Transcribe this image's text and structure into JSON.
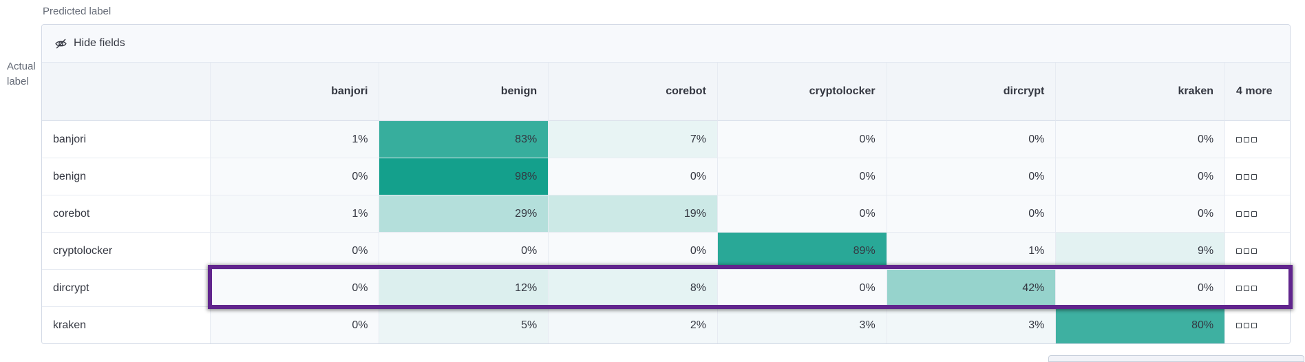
{
  "axis": {
    "predicted_label": "Predicted label",
    "actual_label_lines": [
      "Actual",
      "label"
    ]
  },
  "toolbar": {
    "hide_fields_label": "Hide fields",
    "hide_fields_icon": "eye-closed-icon"
  },
  "grid": {
    "columns": [
      "banjori",
      "benign",
      "corebot",
      "cryptolocker",
      "dircrypt",
      "kraken"
    ],
    "more_column_label": "4 more",
    "value_suffix": "%",
    "actions_icon": "boxes-horizontal-icon",
    "rows": [
      {
        "label": "banjori",
        "values": [
          1,
          83,
          7,
          0,
          0,
          0
        ],
        "highlighted": false
      },
      {
        "label": "benign",
        "values": [
          0,
          98,
          0,
          0,
          0,
          0
        ],
        "highlighted": false
      },
      {
        "label": "corebot",
        "values": [
          1,
          29,
          19,
          0,
          0,
          0
        ],
        "highlighted": false
      },
      {
        "label": "cryptolocker",
        "values": [
          0,
          0,
          0,
          89,
          1,
          9
        ],
        "highlighted": false
      },
      {
        "label": "dircrypt",
        "values": [
          0,
          12,
          8,
          0,
          42,
          0
        ],
        "highlighted": true
      },
      {
        "label": "kraken",
        "values": [
          0,
          5,
          2,
          3,
          3,
          80
        ],
        "highlighted": false
      }
    ]
  },
  "colors": {
    "heat_min": "#f8fafc",
    "heat_max": "#0f9e8a",
    "highlight": "#61258d",
    "header_bg": "#f2f5f9",
    "toolbar_bg": "#f7f9fc",
    "border": "#d3dae6",
    "text": "#343741",
    "muted_text": "#646a76"
  },
  "chart_data": {
    "type": "heatmap",
    "title": "",
    "xlabel": "Predicted label",
    "ylabel": "Actual label",
    "x_categories": [
      "banjori",
      "benign",
      "corebot",
      "cryptolocker",
      "dircrypt",
      "kraken"
    ],
    "y_categories": [
      "banjori",
      "benign",
      "corebot",
      "cryptolocker",
      "dircrypt",
      "kraken"
    ],
    "values_percent": [
      [
        1,
        83,
        7,
        0,
        0,
        0
      ],
      [
        0,
        98,
        0,
        0,
        0,
        0
      ],
      [
        1,
        29,
        19,
        0,
        0,
        0
      ],
      [
        0,
        0,
        0,
        89,
        1,
        9
      ],
      [
        0,
        12,
        8,
        0,
        42,
        0
      ],
      [
        0,
        5,
        2,
        3,
        3,
        80
      ]
    ],
    "hidden_columns_count": 4,
    "highlighted_row": "dircrypt",
    "legend_position": "none",
    "color_scale": {
      "min": "#f8fafc",
      "max": "#0f9e8a"
    }
  }
}
